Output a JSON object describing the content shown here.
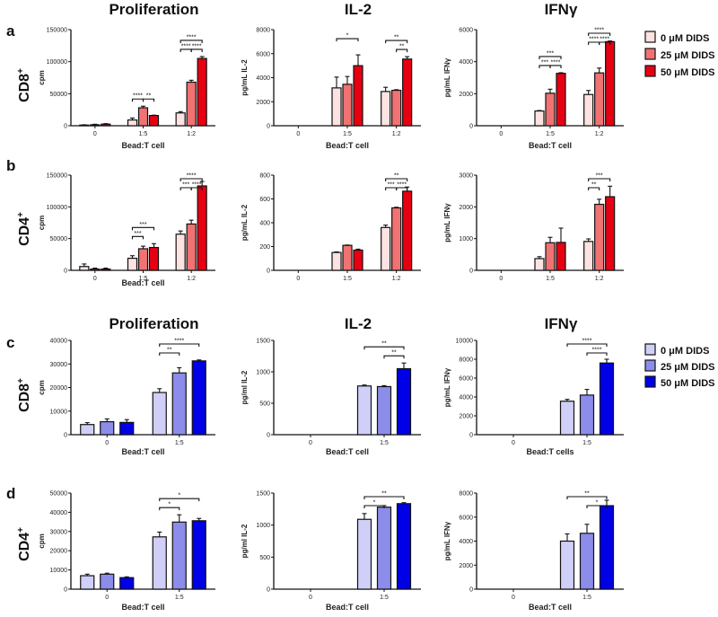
{
  "figure": {
    "column_titles": [
      "Proliferation",
      "IL-2",
      "IFNγ"
    ],
    "rows": [
      {
        "letter": "a",
        "label": "CD8+"
      },
      {
        "letter": "b",
        "label": "CD4+"
      },
      {
        "letter": "c",
        "label": "CD8+"
      },
      {
        "letter": "d",
        "label": "CD4+"
      }
    ],
    "legends": [
      {
        "entries": [
          "0 μM DIDS",
          "25 μM DIDS",
          "50 μM DIDS"
        ],
        "colors": [
          "#fde2e2",
          "#f07272",
          "#e60012"
        ]
      },
      {
        "entries": [
          "0 μM DIDS",
          "25 μM DIDS",
          "50 μM DIDS"
        ],
        "colors": [
          "#cfcff7",
          "#8c8cea",
          "#0000e6"
        ]
      }
    ]
  },
  "chart_data": [
    {
      "row": 0,
      "col": 0,
      "type": "bar",
      "title": "Proliferation",
      "ylabel": "cpm",
      "xlabel": "Bead:T cell",
      "ylim": [
        0,
        150000
      ],
      "yticks": [
        0,
        50000,
        100000,
        150000
      ],
      "categories": [
        "0",
        "1:5",
        "1:2"
      ],
      "series": [
        {
          "name": "0 μM DIDS",
          "values": [
            1000,
            9000,
            20000
          ],
          "errors": [
            500,
            3000,
            2000
          ]
        },
        {
          "name": "25 μM DIDS",
          "values": [
            1500,
            28000,
            68000
          ],
          "errors": [
            800,
            2500,
            3000
          ]
        },
        {
          "name": "50 μM DIDS",
          "values": [
            2500,
            16000,
            105000
          ],
          "errors": [
            800,
            500,
            3000
          ]
        }
      ],
      "significance": [
        {
          "group": 1,
          "from": 0,
          "to": 1,
          "level": 0,
          "label": "****"
        },
        {
          "group": 1,
          "from": 1,
          "to": 2,
          "level": 0,
          "label": "**"
        },
        {
          "group": 2,
          "from": 0,
          "to": 1,
          "level": 0,
          "label": "****"
        },
        {
          "group": 2,
          "from": 1,
          "to": 2,
          "level": 0,
          "label": "****"
        },
        {
          "group": 2,
          "from": 0,
          "to": 2,
          "level": 1,
          "label": "****"
        }
      ]
    },
    {
      "row": 0,
      "col": 1,
      "type": "bar",
      "title": "IL-2",
      "ylabel": "pg/mL IL-2",
      "xlabel": "Bead:T cell",
      "ylim": [
        0,
        8000
      ],
      "yticks": [
        0,
        2000,
        4000,
        6000,
        8000
      ],
      "categories": [
        "0",
        "1:5",
        "1:2"
      ],
      "series": [
        {
          "name": "0 μM DIDS",
          "values": [
            0,
            3150,
            2850
          ],
          "errors": [
            0,
            900,
            350
          ]
        },
        {
          "name": "25 μM DIDS",
          "values": [
            0,
            3450,
            2950
          ],
          "errors": [
            0,
            650,
            50
          ]
        },
        {
          "name": "50 μM DIDS",
          "values": [
            0,
            5000,
            5550
          ],
          "errors": [
            0,
            900,
            200
          ]
        }
      ],
      "significance": [
        {
          "group": 1,
          "from": 0,
          "to": 2,
          "level": 1,
          "label": "*"
        },
        {
          "group": 2,
          "from": 1,
          "to": 2,
          "level": 0,
          "label": "**"
        },
        {
          "group": 2,
          "from": 0,
          "to": 2,
          "level": 1,
          "label": "**"
        }
      ]
    },
    {
      "row": 0,
      "col": 2,
      "type": "bar",
      "title": "IFNγ",
      "ylabel": "pg/mL IFNγ",
      "xlabel": "Bead:T cell",
      "ylim": [
        0,
        6000
      ],
      "yticks": [
        0,
        2000,
        4000,
        6000
      ],
      "categories": [
        "0",
        "1:5",
        "1:2"
      ],
      "series": [
        {
          "name": "0 μM DIDS",
          "values": [
            0,
            920,
            1950
          ],
          "errors": [
            0,
            30,
            250
          ]
        },
        {
          "name": "25 μM DIDS",
          "values": [
            0,
            2030,
            3300
          ],
          "errors": [
            0,
            250,
            300
          ]
        },
        {
          "name": "50 μM DIDS",
          "values": [
            0,
            3270,
            5250
          ],
          "errors": [
            0,
            40,
            40
          ]
        }
      ],
      "significance": [
        {
          "group": 1,
          "from": 0,
          "to": 1,
          "level": 0,
          "label": "***"
        },
        {
          "group": 1,
          "from": 1,
          "to": 2,
          "level": 0,
          "label": "****"
        },
        {
          "group": 1,
          "from": 0,
          "to": 2,
          "level": 1,
          "label": "***"
        },
        {
          "group": 2,
          "from": 0,
          "to": 1,
          "level": 0,
          "label": "****"
        },
        {
          "group": 2,
          "from": 1,
          "to": 2,
          "level": 0,
          "label": "****"
        },
        {
          "group": 2,
          "from": 0,
          "to": 2,
          "level": 1,
          "label": "****"
        }
      ]
    },
    {
      "row": 1,
      "col": 0,
      "type": "bar",
      "title": "Proliferation",
      "ylabel": "cpm",
      "xlabel": "Bead:T cell",
      "ylim": [
        0,
        150000
      ],
      "yticks": [
        0,
        50000,
        100000,
        150000
      ],
      "categories": [
        "0",
        "1:5",
        "1:2"
      ],
      "series": [
        {
          "name": "0 μM DIDS",
          "values": [
            6000,
            19000,
            57000
          ],
          "errors": [
            4000,
            4000,
            5000
          ]
        },
        {
          "name": "25 μM DIDS",
          "values": [
            2000,
            34000,
            73000
          ],
          "errors": [
            1500,
            4000,
            6000
          ]
        },
        {
          "name": "50 μM DIDS",
          "values": [
            2000,
            36000,
            133000
          ],
          "errors": [
            1500,
            6000,
            7000
          ]
        }
      ],
      "significance": [
        {
          "group": 1,
          "from": 0,
          "to": 1,
          "level": 0,
          "label": "***"
        },
        {
          "group": 1,
          "from": 0,
          "to": 2,
          "level": 1,
          "label": "***"
        },
        {
          "group": 2,
          "from": 0,
          "to": 1,
          "level": 0,
          "label": "***"
        },
        {
          "group": 2,
          "from": 1,
          "to": 2,
          "level": 0,
          "label": "****"
        },
        {
          "group": 2,
          "from": 0,
          "to": 2,
          "level": 1,
          "label": "****"
        }
      ]
    },
    {
      "row": 1,
      "col": 1,
      "type": "bar",
      "title": "IL-2",
      "ylabel": "pg/mL IL-2",
      "xlabel": "",
      "ylim": [
        0,
        800
      ],
      "yticks": [
        0,
        200,
        400,
        600,
        800
      ],
      "categories": [
        "0",
        "1:5",
        "1:2"
      ],
      "series": [
        {
          "name": "0 μM DIDS",
          "values": [
            0,
            150,
            360
          ],
          "errors": [
            0,
            5,
            20
          ]
        },
        {
          "name": "25 μM DIDS",
          "values": [
            0,
            210,
            525
          ],
          "errors": [
            0,
            3,
            5
          ]
        },
        {
          "name": "50 μM DIDS",
          "values": [
            0,
            170,
            665
          ],
          "errors": [
            0,
            8,
            35
          ]
        }
      ],
      "significance": [
        {
          "group": 2,
          "from": 0,
          "to": 1,
          "level": 0,
          "label": "***"
        },
        {
          "group": 2,
          "from": 1,
          "to": 2,
          "level": 0,
          "label": "****"
        },
        {
          "group": 2,
          "from": 0,
          "to": 2,
          "level": 1,
          "label": "**"
        }
      ]
    },
    {
      "row": 1,
      "col": 2,
      "type": "bar",
      "title": "IFNγ",
      "ylabel": "pg/mL IFNγ",
      "xlabel": "",
      "ylim": [
        0,
        3000
      ],
      "yticks": [
        0,
        1000,
        2000,
        3000
      ],
      "categories": [
        "0",
        "1:5",
        "1:2"
      ],
      "series": [
        {
          "name": "0 μM DIDS",
          "values": [
            0,
            370,
            910
          ],
          "errors": [
            0,
            60,
            80
          ]
        },
        {
          "name": "25 μM DIDS",
          "values": [
            0,
            870,
            2080
          ],
          "errors": [
            0,
            170,
            160
          ]
        },
        {
          "name": "50 μM DIDS",
          "values": [
            0,
            880,
            2320
          ],
          "errors": [
            0,
            450,
            330
          ]
        }
      ],
      "significance": [
        {
          "group": 2,
          "from": 0,
          "to": 1,
          "level": 0,
          "label": "**"
        },
        {
          "group": 2,
          "from": 0,
          "to": 2,
          "level": 1,
          "label": "***"
        }
      ]
    },
    {
      "row": 2,
      "col": 0,
      "type": "bar",
      "title": "Proliferation",
      "ylabel": "cpm",
      "xlabel": "Bead:T cell",
      "ylim": [
        0,
        40000
      ],
      "yticks": [
        0,
        10000,
        20000,
        30000,
        40000
      ],
      "categories": [
        "0",
        "1:5"
      ],
      "series": [
        {
          "name": "0 μM DIDS",
          "values": [
            4300,
            17900
          ],
          "errors": [
            800,
            1600
          ]
        },
        {
          "name": "25 μM DIDS",
          "values": [
            5500,
            26200
          ],
          "errors": [
            1200,
            2200
          ]
        },
        {
          "name": "50 μM DIDS",
          "values": [
            5200,
            31300
          ],
          "errors": [
            1200,
            400
          ]
        }
      ],
      "significance": [
        {
          "group": 1,
          "from": 0,
          "to": 1,
          "level": 0,
          "label": "**"
        },
        {
          "group": 1,
          "from": 0,
          "to": 2,
          "level": 1,
          "label": "****"
        }
      ]
    },
    {
      "row": 2,
      "col": 1,
      "type": "bar",
      "title": "IL-2",
      "ylabel": "pg/ml IL-2",
      "xlabel": "Bead:T cell",
      "ylim": [
        0,
        1500
      ],
      "yticks": [
        0,
        500,
        1000,
        1500
      ],
      "categories": [
        "0",
        "1:5"
      ],
      "series": [
        {
          "name": "0 μM DIDS",
          "values": [
            0,
            775
          ],
          "errors": [
            0,
            15
          ]
        },
        {
          "name": "25 μM DIDS",
          "values": [
            0,
            765
          ],
          "errors": [
            0,
            15
          ]
        },
        {
          "name": "50 μM DIDS",
          "values": [
            0,
            1050
          ],
          "errors": [
            0,
            90
          ]
        }
      ],
      "significance": [
        {
          "group": 1,
          "from": 1,
          "to": 2,
          "level": 0,
          "label": "**"
        },
        {
          "group": 1,
          "from": 0,
          "to": 2,
          "level": 1,
          "label": "**"
        }
      ]
    },
    {
      "row": 2,
      "col": 2,
      "type": "bar",
      "title": "IFNγ",
      "ylabel": "pg/mL IFNγ",
      "xlabel": "Bead:T cells",
      "ylim": [
        0,
        10000
      ],
      "yticks": [
        0,
        2000,
        4000,
        6000,
        8000,
        10000
      ],
      "categories": [
        "0",
        "1:5"
      ],
      "series": [
        {
          "name": "0 μM DIDS",
          "values": [
            0,
            3550
          ],
          "errors": [
            0,
            200
          ]
        },
        {
          "name": "25 μM DIDS",
          "values": [
            0,
            4200
          ],
          "errors": [
            0,
            600
          ]
        },
        {
          "name": "50 μM DIDS",
          "values": [
            0,
            7600
          ],
          "errors": [
            0,
            400
          ]
        }
      ],
      "significance": [
        {
          "group": 1,
          "from": 1,
          "to": 2,
          "level": 0,
          "label": "****"
        },
        {
          "group": 1,
          "from": 0,
          "to": 2,
          "level": 1,
          "label": "****"
        }
      ]
    },
    {
      "row": 3,
      "col": 0,
      "type": "bar",
      "title": "Proliferation",
      "ylabel": "cpm",
      "xlabel": "Bead:T cell",
      "ylim": [
        0,
        50000
      ],
      "yticks": [
        0,
        10000,
        20000,
        30000,
        40000,
        50000
      ],
      "categories": [
        "0",
        "1:5"
      ],
      "series": [
        {
          "name": "0 μM DIDS",
          "values": [
            7000,
            27200
          ],
          "errors": [
            800,
            2500
          ]
        },
        {
          "name": "25 μM DIDS",
          "values": [
            7800,
            34900
          ],
          "errors": [
            500,
            3800
          ]
        },
        {
          "name": "50 μM DIDS",
          "values": [
            6000,
            35600
          ],
          "errors": [
            400,
            1200
          ]
        }
      ],
      "significance": [
        {
          "group": 1,
          "from": 0,
          "to": 1,
          "level": 0,
          "label": "*"
        },
        {
          "group": 1,
          "from": 0,
          "to": 2,
          "level": 1,
          "label": "*"
        }
      ]
    },
    {
      "row": 3,
      "col": 1,
      "type": "bar",
      "title": "IL-2",
      "ylabel": "pg/ml IL-2",
      "xlabel": "Bead:T cell",
      "ylim": [
        0,
        1500
      ],
      "yticks": [
        0,
        500,
        1000,
        1500
      ],
      "categories": [
        "0",
        "1:5"
      ],
      "series": [
        {
          "name": "0 μM DIDS",
          "values": [
            0,
            1090
          ],
          "errors": [
            0,
            90
          ]
        },
        {
          "name": "25 μM DIDS",
          "values": [
            0,
            1280
          ],
          "errors": [
            0,
            25
          ]
        },
        {
          "name": "50 μM DIDS",
          "values": [
            0,
            1335
          ],
          "errors": [
            0,
            15
          ]
        }
      ],
      "significance": [
        {
          "group": 1,
          "from": 0,
          "to": 1,
          "level": 0,
          "label": "*"
        },
        {
          "group": 1,
          "from": 0,
          "to": 2,
          "level": 1,
          "label": "**"
        }
      ]
    },
    {
      "row": 3,
      "col": 2,
      "type": "bar",
      "title": "IFNγ",
      "ylabel": "pg/mL IFNγ",
      "xlabel": "Bead:T cell",
      "ylim": [
        0,
        8000
      ],
      "yticks": [
        0,
        2000,
        4000,
        6000,
        8000
      ],
      "categories": [
        "0",
        "1:5"
      ],
      "series": [
        {
          "name": "0 μM DIDS",
          "values": [
            0,
            4000
          ],
          "errors": [
            0,
            600
          ]
        },
        {
          "name": "25 μM DIDS",
          "values": [
            0,
            4650
          ],
          "errors": [
            0,
            750
          ]
        },
        {
          "name": "50 μM DIDS",
          "values": [
            0,
            6950
          ],
          "errors": [
            0,
            450
          ]
        }
      ],
      "significance": [
        {
          "group": 1,
          "from": 1,
          "to": 2,
          "level": 0,
          "label": "*"
        },
        {
          "group": 1,
          "from": 0,
          "to": 2,
          "level": 1,
          "label": "**"
        }
      ]
    }
  ]
}
